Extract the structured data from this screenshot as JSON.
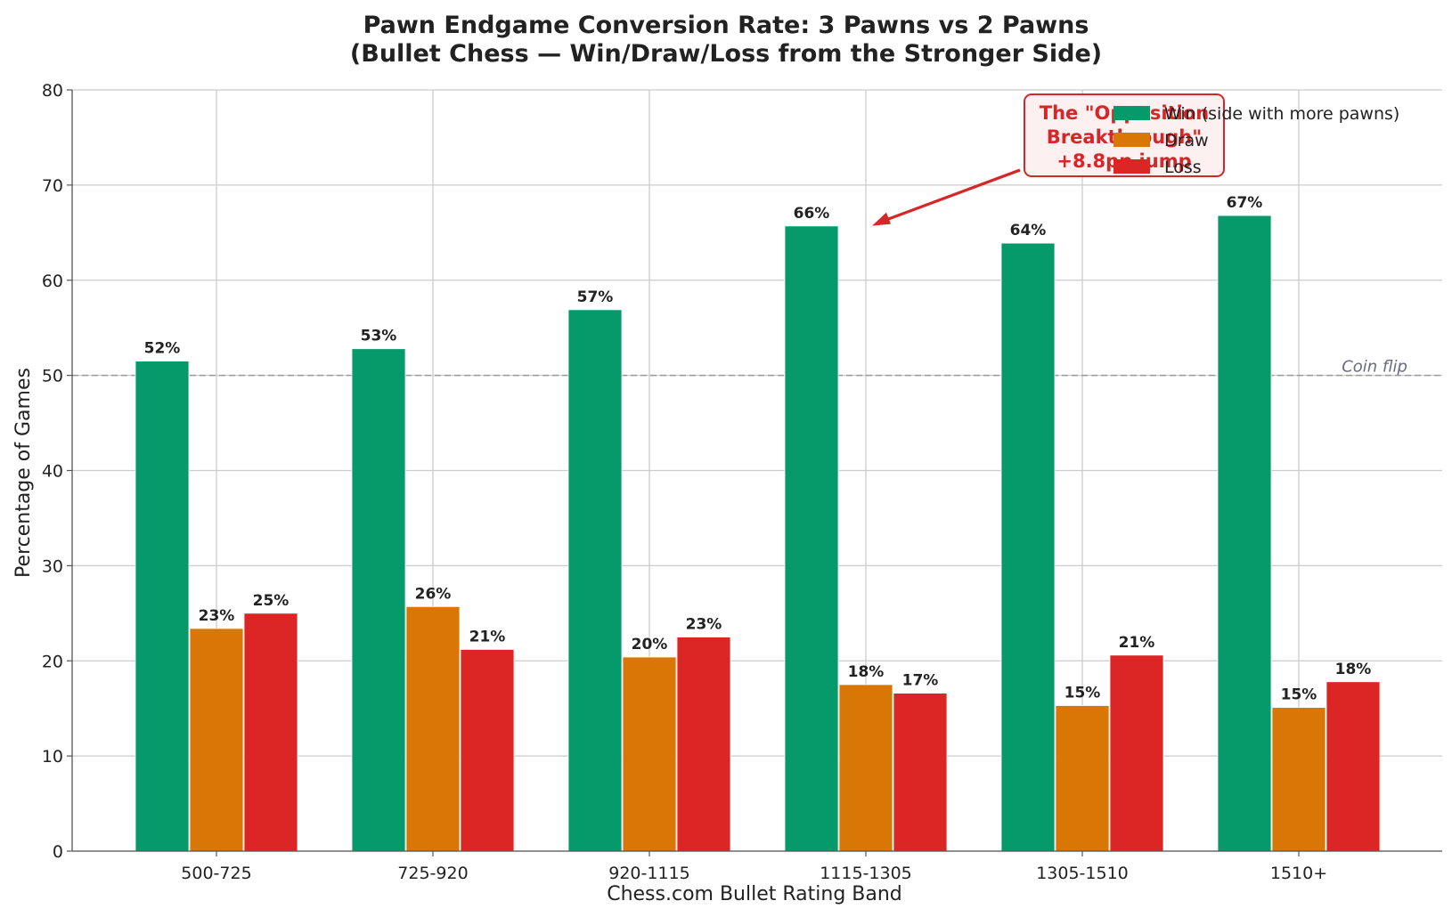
{
  "chart_data": {
    "type": "bar",
    "title": [
      "Pawn Endgame Conversion Rate: 3 Pawns vs 2 Pawns",
      "(Bullet Chess — Win/Draw/Loss from the Stronger Side)"
    ],
    "xlabel": "Chess.com Bullet Rating Band",
    "ylabel": "Percentage of Games",
    "ylim": [
      0,
      80
    ],
    "yticks": [
      0,
      10,
      20,
      30,
      40,
      50,
      60,
      70,
      80
    ],
    "categories": [
      "500-725",
      "725-920",
      "920-1115",
      "1115-1305",
      "1305-1510",
      "1510+"
    ],
    "series": [
      {
        "name": "Win (side with more pawns)",
        "color": "#069a6a",
        "values": [
          51.5,
          52.8,
          56.9,
          65.7,
          63.9,
          66.8
        ],
        "labels": [
          "52%",
          "53%",
          "57%",
          "66%",
          "64%",
          "67%"
        ]
      },
      {
        "name": "Draw",
        "color": "#d97706",
        "values": [
          23.4,
          25.7,
          20.4,
          17.5,
          15.3,
          15.1
        ],
        "labels": [
          "23%",
          "26%",
          "20%",
          "18%",
          "15%",
          "15%"
        ]
      },
      {
        "name": "Loss",
        "color": "#dc2626",
        "values": [
          25.0,
          21.2,
          22.5,
          16.6,
          20.6,
          17.8
        ],
        "labels": [
          "25%",
          "21%",
          "23%",
          "17%",
          "21%",
          "18%"
        ]
      }
    ],
    "reference_line": {
      "y": 50,
      "label": "Coin flip",
      "color": "#999999"
    },
    "annotation": {
      "lines": [
        "The \"Opposition",
        "Breakthrough\"",
        "+8.8pp jump"
      ],
      "target_category": "1115-1305",
      "target_value": 66,
      "color": "#d62728"
    },
    "legend_position": "top-right",
    "grid": true
  }
}
